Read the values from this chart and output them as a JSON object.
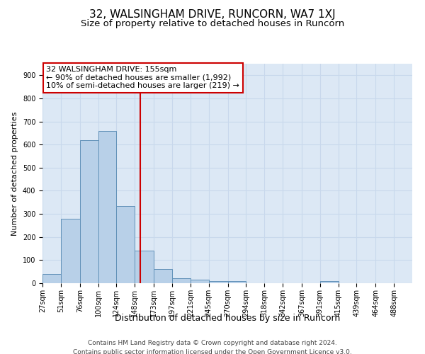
{
  "title": "32, WALSINGHAM DRIVE, RUNCORN, WA7 1XJ",
  "subtitle": "Size of property relative to detached houses in Runcorn",
  "xlabel": "Distribution of detached houses by size in Runcorn",
  "ylabel": "Number of detached properties",
  "bin_edges": [
    27,
    51,
    76,
    100,
    124,
    148,
    173,
    197,
    221,
    245,
    270,
    294,
    318,
    342,
    367,
    391,
    415,
    439,
    464,
    488,
    512
  ],
  "bar_heights": [
    40,
    280,
    620,
    660,
    335,
    140,
    60,
    20,
    15,
    10,
    10,
    0,
    0,
    0,
    0,
    10,
    0,
    0,
    0,
    0
  ],
  "bar_color": "#b8d0e8",
  "bar_edge_color": "#6090b8",
  "reference_line_x": 155,
  "reference_line_color": "#cc0000",
  "annotation_text": "32 WALSINGHAM DRIVE: 155sqm\n← 90% of detached houses are smaller (1,992)\n10% of semi-detached houses are larger (219) →",
  "annotation_box_color": "#ffffff",
  "annotation_box_edge": "#cc0000",
  "ylim": [
    0,
    950
  ],
  "yticks": [
    0,
    100,
    200,
    300,
    400,
    500,
    600,
    700,
    800,
    900
  ],
  "grid_color": "#c8d8ec",
  "background_color": "#dce8f5",
  "footer_line1": "Contains HM Land Registry data © Crown copyright and database right 2024.",
  "footer_line2": "Contains public sector information licensed under the Open Government Licence v3.0.",
  "title_fontsize": 11,
  "subtitle_fontsize": 9.5,
  "ylabel_fontsize": 8,
  "xlabel_fontsize": 9,
  "tick_label_fontsize": 7,
  "footer_fontsize": 6.5,
  "annotation_fontsize": 8
}
